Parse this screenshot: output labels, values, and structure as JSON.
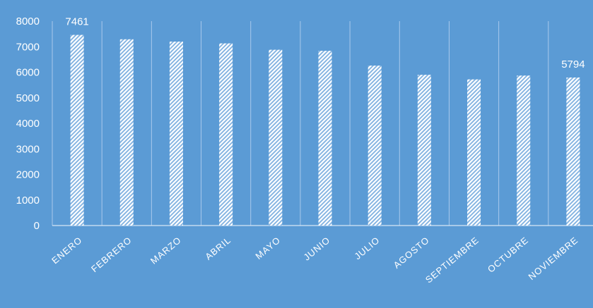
{
  "chart_data": {
    "type": "bar",
    "title": "",
    "xlabel": "",
    "ylabel": "",
    "categories": [
      "ENERO",
      "FEBRERO",
      "MARZO",
      "ABRIL",
      "MAYO",
      "JUNIO",
      "JULIO",
      "AGOSTO",
      "SEPTIEMBRE",
      "OCTUBRE",
      "NOVIEMBRE"
    ],
    "values": [
      7461,
      7290,
      7200,
      7130,
      6880,
      6840,
      6260,
      5900,
      5720,
      5870,
      5794
    ],
    "data_labels": [
      {
        "index": 0,
        "text": "7461"
      },
      {
        "index": 10,
        "text": "5794"
      }
    ],
    "yticks": [
      "0",
      "1000",
      "2000",
      "3000",
      "4000",
      "5000",
      "6000",
      "7000",
      "8000"
    ],
    "ylim": [
      0,
      8000
    ],
    "grid": "vertical",
    "legend": "none",
    "bar_pattern": "diagonal-hatch",
    "colors": {
      "background": "#5b9bd5",
      "bar_stripe": "#ffffff",
      "bar_gap": "#7eb0e0",
      "gridline": "#a9c9ec",
      "axis_line": "#d6e6f5",
      "text": "#ffffff"
    }
  }
}
